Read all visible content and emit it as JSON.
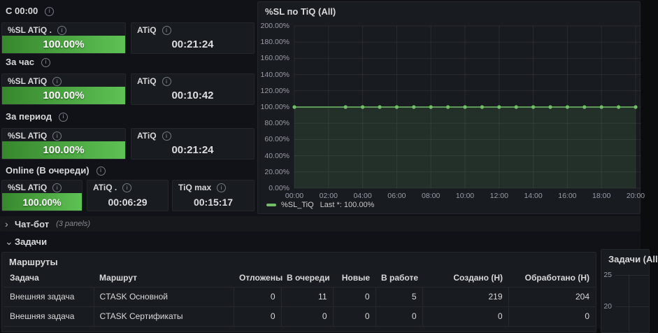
{
  "accent": {
    "green": "#73bf69",
    "stat_gradient_left": "#37872d",
    "stat_gradient_right": "#5ec254"
  },
  "stat_sections": [
    {
      "label": "С 00:00",
      "panels": [
        {
          "title": "%SL ATiQ .",
          "kind": "percent",
          "value": "100.00%"
        },
        {
          "title": "ATiQ",
          "kind": "time",
          "value": "00:21:24"
        }
      ]
    },
    {
      "label": "За час",
      "panels": [
        {
          "title": "%SL ATiQ",
          "kind": "percent",
          "value": "100.00%"
        },
        {
          "title": "ATiQ",
          "kind": "time",
          "value": "00:10:42"
        }
      ]
    },
    {
      "label": "За период",
      "panels": [
        {
          "title": "%SL ATiQ",
          "kind": "percent",
          "value": "100.00%"
        },
        {
          "title": "ATiQ",
          "kind": "time",
          "value": "00:21:24"
        }
      ]
    },
    {
      "label": "Online (В очереди)",
      "panels": [
        {
          "title": "%SL ATiQ",
          "kind": "percent",
          "value": "100.00%"
        },
        {
          "title": "ATiQ .",
          "kind": "time",
          "value": "00:06:29"
        },
        {
          "title": "TiQ max",
          "kind": "time",
          "value": "00:15:17"
        }
      ]
    }
  ],
  "rows": {
    "chatbot": {
      "label": "Чат-бот",
      "meta": "(3 panels)",
      "collapsed": true
    },
    "tasks": {
      "label": "Задачи",
      "collapsed": false
    }
  },
  "routes_table": {
    "title": "Маршруты",
    "columns": [
      "Задача",
      "Маршрут",
      "Отложены",
      "В очереди",
      "Новые",
      "В работе",
      "Создано (Н)",
      "Обработано (Н)"
    ],
    "rows": [
      [
        "Внешняя задача",
        "CTASK Основной",
        "0",
        "11",
        "0",
        "5",
        "219",
        "204"
      ],
      [
        "Внешняя задача",
        "CTASK Сертификаты",
        "0",
        "0",
        "0",
        "0",
        "0",
        "0"
      ]
    ]
  },
  "chart_data": [
    {
      "type": "line",
      "title": "%SL по TiQ (All)",
      "ylim": [
        0,
        200
      ],
      "grid": true,
      "legend_position": "bottom",
      "yticks": [
        "0.00%",
        "20.00%",
        "40.00%",
        "60.00%",
        "80.00%",
        "100.00%",
        "120.00%",
        "140.00%",
        "160.00%",
        "180.00%",
        "200.00%"
      ],
      "xticks": [
        "00:00",
        "02:00",
        "04:00",
        "06:00",
        "08:00",
        "10:00",
        "12:00",
        "14:00",
        "16:00",
        "18:00",
        "20:00"
      ],
      "x_range_hours": [
        0,
        20
      ],
      "series": [
        {
          "name": "%SL_TiQ",
          "color": "#73bf69",
          "x_hours": [
            0,
            3,
            4,
            5,
            6,
            7,
            8,
            9,
            10,
            11,
            12,
            13,
            14,
            15,
            16,
            17,
            18,
            19,
            20
          ],
          "values": [
            100,
            100,
            100,
            100,
            100,
            100,
            100,
            100,
            100,
            100,
            100,
            100,
            100,
            100,
            100,
            100,
            100,
            100,
            100
          ]
        }
      ],
      "legend": [
        {
          "name": "%SL_TiQ",
          "stat": "Last *: 100.00%"
        }
      ]
    },
    {
      "type": "line",
      "title": "Задачи (All",
      "visible_yticks": [
        "25",
        "20"
      ]
    }
  ]
}
